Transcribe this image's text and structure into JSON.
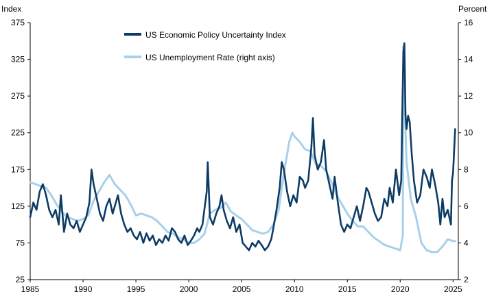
{
  "chart_data": {
    "type": "line",
    "left_axis_title": "Index",
    "right_axis_title": "Percent",
    "xlim": [
      1985,
      2025.5
    ],
    "ylim_left": [
      25,
      375
    ],
    "ylim_right": [
      2,
      16
    ],
    "left_ticks": [
      375,
      325,
      275,
      225,
      175,
      125,
      75,
      25
    ],
    "right_ticks": [
      16,
      14,
      12,
      10,
      8,
      6,
      4,
      2
    ],
    "x_ticks": [
      1985,
      1990,
      1995,
      2000,
      2005,
      2010,
      2015,
      2020,
      2025
    ],
    "grid": false,
    "legend_position": "top-center",
    "series": [
      {
        "name": "US Economic Policy Uncertainty Index",
        "axis": "left",
        "color": "#0d3b66",
        "points": [
          [
            1985.0,
            110
          ],
          [
            1985.3,
            130
          ],
          [
            1985.6,
            120
          ],
          [
            1985.9,
            145
          ],
          [
            1986.2,
            155
          ],
          [
            1986.5,
            140
          ],
          [
            1986.8,
            120
          ],
          [
            1987.1,
            110
          ],
          [
            1987.4,
            120
          ],
          [
            1987.7,
            100
          ],
          [
            1987.9,
            140
          ],
          [
            1988.2,
            90
          ],
          [
            1988.5,
            115
          ],
          [
            1988.8,
            100
          ],
          [
            1989.1,
            95
          ],
          [
            1989.4,
            105
          ],
          [
            1989.7,
            90
          ],
          [
            1990.0,
            100
          ],
          [
            1990.3,
            110
          ],
          [
            1990.6,
            130
          ],
          [
            1990.8,
            175
          ],
          [
            1991.0,
            155
          ],
          [
            1991.3,
            135
          ],
          [
            1991.6,
            115
          ],
          [
            1991.9,
            105
          ],
          [
            1992.2,
            125
          ],
          [
            1992.5,
            135
          ],
          [
            1992.8,
            115
          ],
          [
            1993.0,
            125
          ],
          [
            1993.3,
            140
          ],
          [
            1993.6,
            115
          ],
          [
            1993.9,
            100
          ],
          [
            1994.2,
            90
          ],
          [
            1994.5,
            95
          ],
          [
            1994.8,
            85
          ],
          [
            1995.1,
            80
          ],
          [
            1995.4,
            90
          ],
          [
            1995.7,
            75
          ],
          [
            1996.0,
            88
          ],
          [
            1996.3,
            78
          ],
          [
            1996.6,
            85
          ],
          [
            1996.9,
            72
          ],
          [
            1997.2,
            80
          ],
          [
            1997.5,
            75
          ],
          [
            1997.8,
            85
          ],
          [
            1998.1,
            78
          ],
          [
            1998.4,
            95
          ],
          [
            1998.7,
            90
          ],
          [
            1999.0,
            80
          ],
          [
            1999.3,
            75
          ],
          [
            1999.6,
            85
          ],
          [
            1999.9,
            72
          ],
          [
            2000.2,
            78
          ],
          [
            2000.5,
            85
          ],
          [
            2000.8,
            95
          ],
          [
            2001.0,
            90
          ],
          [
            2001.3,
            100
          ],
          [
            2001.7,
            145
          ],
          [
            2001.8,
            185
          ],
          [
            2002.0,
            110
          ],
          [
            2002.3,
            100
          ],
          [
            2002.6,
            115
          ],
          [
            2002.9,
            125
          ],
          [
            2003.1,
            140
          ],
          [
            2003.3,
            120
          ],
          [
            2003.6,
            105
          ],
          [
            2003.9,
            95
          ],
          [
            2004.2,
            110
          ],
          [
            2004.5,
            90
          ],
          [
            2004.8,
            100
          ],
          [
            2005.1,
            75
          ],
          [
            2005.4,
            70
          ],
          [
            2005.7,
            65
          ],
          [
            2006.0,
            75
          ],
          [
            2006.3,
            70
          ],
          [
            2006.6,
            78
          ],
          [
            2006.9,
            72
          ],
          [
            2007.2,
            65
          ],
          [
            2007.5,
            70
          ],
          [
            2007.8,
            80
          ],
          [
            2008.0,
            95
          ],
          [
            2008.3,
            120
          ],
          [
            2008.6,
            150
          ],
          [
            2008.8,
            185
          ],
          [
            2009.0,
            175
          ],
          [
            2009.3,
            145
          ],
          [
            2009.6,
            125
          ],
          [
            2009.9,
            140
          ],
          [
            2010.2,
            130
          ],
          [
            2010.5,
            165
          ],
          [
            2010.8,
            160
          ],
          [
            2011.0,
            150
          ],
          [
            2011.3,
            160
          ],
          [
            2011.6,
            205
          ],
          [
            2011.75,
            245
          ],
          [
            2011.9,
            195
          ],
          [
            2012.2,
            175
          ],
          [
            2012.5,
            185
          ],
          [
            2012.8,
            215
          ],
          [
            2013.0,
            175
          ],
          [
            2013.3,
            155
          ],
          [
            2013.6,
            135
          ],
          [
            2013.8,
            165
          ],
          [
            2014.1,
            130
          ],
          [
            2014.4,
            100
          ],
          [
            2014.7,
            90
          ],
          [
            2015.0,
            100
          ],
          [
            2015.3,
            95
          ],
          [
            2015.6,
            110
          ],
          [
            2015.9,
            125
          ],
          [
            2016.2,
            105
          ],
          [
            2016.5,
            125
          ],
          [
            2016.8,
            150
          ],
          [
            2017.0,
            145
          ],
          [
            2017.3,
            130
          ],
          [
            2017.6,
            115
          ],
          [
            2017.9,
            105
          ],
          [
            2018.2,
            110
          ],
          [
            2018.5,
            135
          ],
          [
            2018.8,
            125
          ],
          [
            2019.0,
            150
          ],
          [
            2019.3,
            130
          ],
          [
            2019.6,
            175
          ],
          [
            2019.9,
            140
          ],
          [
            2020.1,
            160
          ],
          [
            2020.2,
            250
          ],
          [
            2020.3,
            335
          ],
          [
            2020.4,
            347
          ],
          [
            2020.5,
            250
          ],
          [
            2020.6,
            230
          ],
          [
            2020.75,
            248
          ],
          [
            2020.9,
            240
          ],
          [
            2021.1,
            195
          ],
          [
            2021.3,
            160
          ],
          [
            2021.6,
            130
          ],
          [
            2021.9,
            140
          ],
          [
            2022.2,
            175
          ],
          [
            2022.5,
            165
          ],
          [
            2022.8,
            150
          ],
          [
            2023.0,
            175
          ],
          [
            2023.3,
            155
          ],
          [
            2023.6,
            130
          ],
          [
            2023.8,
            100
          ],
          [
            2024.0,
            135
          ],
          [
            2024.2,
            110
          ],
          [
            2024.5,
            120
          ],
          [
            2024.8,
            100
          ],
          [
            2024.9,
            160
          ],
          [
            2025.0,
            170
          ],
          [
            2025.2,
            230
          ]
        ]
      },
      {
        "name": "US Unemployment Rate (right axis)",
        "axis": "right",
        "color": "#a8d0ea",
        "points": [
          [
            1985.0,
            7.3
          ],
          [
            1985.5,
            7.2
          ],
          [
            1986.0,
            7.1
          ],
          [
            1986.5,
            7.0
          ],
          [
            1987.0,
            6.6
          ],
          [
            1987.5,
            6.1
          ],
          [
            1988.0,
            5.7
          ],
          [
            1988.5,
            5.4
          ],
          [
            1989.0,
            5.3
          ],
          [
            1989.5,
            5.2
          ],
          [
            1990.0,
            5.3
          ],
          [
            1990.5,
            5.5
          ],
          [
            1991.0,
            6.3
          ],
          [
            1991.5,
            6.8
          ],
          [
            1992.0,
            7.3
          ],
          [
            1992.5,
            7.7
          ],
          [
            1993.0,
            7.2
          ],
          [
            1993.5,
            6.9
          ],
          [
            1994.0,
            6.6
          ],
          [
            1994.5,
            6.1
          ],
          [
            1995.0,
            5.5
          ],
          [
            1995.5,
            5.6
          ],
          [
            1996.0,
            5.5
          ],
          [
            1996.5,
            5.4
          ],
          [
            1997.0,
            5.2
          ],
          [
            1997.5,
            4.9
          ],
          [
            1998.0,
            4.6
          ],
          [
            1998.5,
            4.5
          ],
          [
            1999.0,
            4.3
          ],
          [
            1999.5,
            4.2
          ],
          [
            2000.0,
            4.0
          ],
          [
            2000.5,
            4.0
          ],
          [
            2001.0,
            4.2
          ],
          [
            2001.5,
            4.5
          ],
          [
            2002.0,
            5.6
          ],
          [
            2002.5,
            5.8
          ],
          [
            2003.0,
            5.9
          ],
          [
            2003.5,
            6.2
          ],
          [
            2004.0,
            5.7
          ],
          [
            2004.5,
            5.5
          ],
          [
            2005.0,
            5.3
          ],
          [
            2005.5,
            5.0
          ],
          [
            2006.0,
            4.7
          ],
          [
            2006.5,
            4.6
          ],
          [
            2007.0,
            4.5
          ],
          [
            2007.5,
            4.6
          ],
          [
            2008.0,
            5.0
          ],
          [
            2008.5,
            5.8
          ],
          [
            2009.0,
            7.8
          ],
          [
            2009.5,
            9.5
          ],
          [
            2009.8,
            10.0
          ],
          [
            2010.0,
            9.8
          ],
          [
            2010.5,
            9.5
          ],
          [
            2011.0,
            9.1
          ],
          [
            2011.5,
            9.0
          ],
          [
            2012.0,
            8.3
          ],
          [
            2012.5,
            8.2
          ],
          [
            2013.0,
            7.9
          ],
          [
            2013.5,
            7.3
          ],
          [
            2014.0,
            6.6
          ],
          [
            2014.5,
            6.1
          ],
          [
            2015.0,
            5.6
          ],
          [
            2015.5,
            5.2
          ],
          [
            2016.0,
            4.9
          ],
          [
            2016.5,
            4.9
          ],
          [
            2017.0,
            4.6
          ],
          [
            2017.5,
            4.3
          ],
          [
            2018.0,
            4.1
          ],
          [
            2018.5,
            3.9
          ],
          [
            2019.0,
            3.8
          ],
          [
            2019.5,
            3.7
          ],
          [
            2020.0,
            3.6
          ],
          [
            2020.25,
            4.4
          ],
          [
            2020.3,
            14.7
          ],
          [
            2020.45,
            11.1
          ],
          [
            2020.6,
            8.4
          ],
          [
            2021.0,
            6.4
          ],
          [
            2021.5,
            5.4
          ],
          [
            2022.0,
            4.0
          ],
          [
            2022.5,
            3.6
          ],
          [
            2023.0,
            3.5
          ],
          [
            2023.5,
            3.5
          ],
          [
            2024.0,
            3.8
          ],
          [
            2024.5,
            4.2
          ],
          [
            2025.0,
            4.1
          ],
          [
            2025.2,
            4.1
          ]
        ]
      }
    ]
  }
}
